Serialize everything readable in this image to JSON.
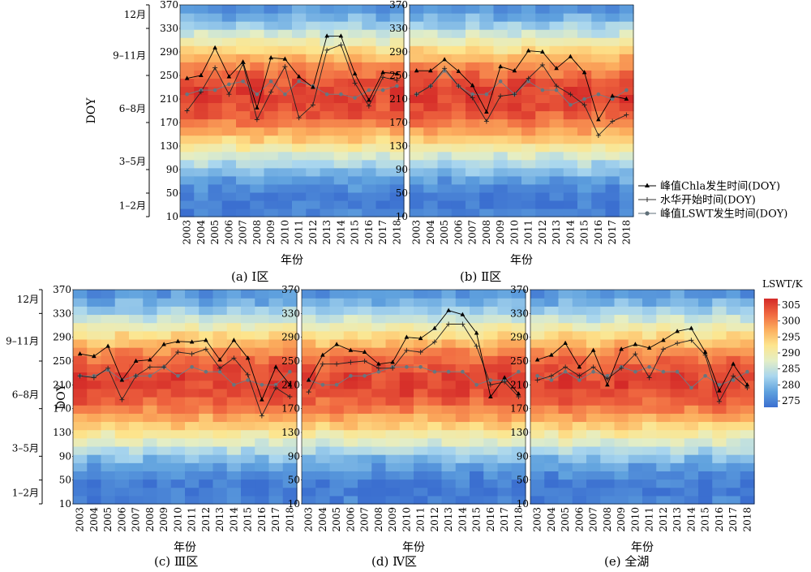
{
  "chart_data": {
    "type": "heatmap",
    "x_label": "年份",
    "y_label": "DOY",
    "years": [
      "2003",
      "2004",
      "2005",
      "2006",
      "2007",
      "2008",
      "2009",
      "2010",
      "2011",
      "2012",
      "2013",
      "2014",
      "2015",
      "2016",
      "2017",
      "2018"
    ],
    "doy_ticks": [
      10,
      50,
      90,
      130,
      170,
      210,
      250,
      290,
      330,
      370
    ],
    "y_range": [
      10,
      370
    ],
    "month_labels": [
      {
        "label": "1–2月",
        "doy": 30
      },
      {
        "label": "3–5月",
        "doy": 105
      },
      {
        "label": "6–8月",
        "doy": 195
      },
      {
        "label": "9–11月",
        "doy": 285
      },
      {
        "label": "12月",
        "doy": 355
      }
    ],
    "colorbar": {
      "title": "LSWT/K",
      "ticks": [
        275,
        280,
        285,
        290,
        295,
        300,
        305
      ],
      "range": [
        273,
        307
      ],
      "colors": [
        "#3b6fd0",
        "#5fa1de",
        "#a9d6ee",
        "#e4eec5",
        "#fde58d",
        "#fcae5e",
        "#f06840",
        "#d42a28"
      ]
    },
    "legend": [
      {
        "label": "峰值Chla发生时间(DOY)",
        "marker": "triangle",
        "color": "#000000"
      },
      {
        "label": "水华开始时间(DOY)",
        "marker": "plus",
        "color": "#333333"
      },
      {
        "label": "峰值LSWT发生时间(DOY)",
        "marker": "circle",
        "color": "#5f6f78"
      }
    ],
    "panels": [
      {
        "caption": "(a) Ⅰ区",
        "peak_chla": [
          245,
          250,
          297,
          248,
          273,
          195,
          280,
          278,
          248,
          230,
          317,
          317,
          253,
          208,
          255,
          253
        ],
        "bloom_start": [
          190,
          222,
          263,
          218,
          270,
          175,
          222,
          265,
          178,
          200,
          293,
          302,
          237,
          198,
          247,
          242
        ],
        "peak_lswt": [
          218,
          225,
          225,
          235,
          240,
          218,
          240,
          218,
          240,
          232,
          218,
          218,
          212,
          225,
          225,
          232
        ]
      },
      {
        "caption": "(b) Ⅱ区",
        "peak_chla": [
          258,
          258,
          277,
          257,
          233,
          188,
          265,
          258,
          292,
          290,
          262,
          282,
          255,
          175,
          215,
          210
        ],
        "bloom_start": [
          218,
          232,
          262,
          232,
          212,
          172,
          215,
          218,
          245,
          268,
          232,
          218,
          200,
          148,
          172,
          183
        ],
        "peak_lswt": [
          218,
          232,
          258,
          232,
          218,
          218,
          240,
          218,
          240,
          225,
          225,
          200,
          210,
          218,
          210,
          225
        ]
      },
      {
        "caption": "(c) Ⅲ区",
        "peak_chla": [
          262,
          258,
          275,
          218,
          250,
          252,
          278,
          283,
          282,
          285,
          252,
          285,
          255,
          185,
          240,
          210
        ],
        "bloom_start": [
          225,
          222,
          238,
          185,
          225,
          240,
          240,
          265,
          262,
          270,
          238,
          255,
          227,
          158,
          205,
          190
        ],
        "peak_lswt": [
          225,
          225,
          235,
          218,
          225,
          225,
          240,
          225,
          240,
          232,
          232,
          210,
          218,
          210,
          210,
          232
        ]
      },
      {
        "caption": "(d) Ⅳ区",
        "peak_chla": [
          218,
          260,
          278,
          268,
          265,
          245,
          248,
          290,
          288,
          305,
          335,
          328,
          297,
          190,
          222,
          195
        ],
        "bloom_start": [
          198,
          245,
          245,
          248,
          250,
          238,
          238,
          268,
          265,
          282,
          312,
          312,
          275,
          210,
          215,
          190
        ],
        "peak_lswt": [
          218,
          210,
          210,
          225,
          225,
          232,
          240,
          240,
          240,
          232,
          232,
          232,
          210,
          218,
          218,
          232
        ]
      },
      {
        "caption": "(e) 全湖",
        "peak_chla": [
          252,
          260,
          280,
          240,
          268,
          210,
          270,
          278,
          272,
          285,
          300,
          305,
          265,
          200,
          245,
          210
        ],
        "bloom_start": [
          218,
          225,
          240,
          225,
          240,
          220,
          238,
          262,
          222,
          270,
          280,
          285,
          260,
          182,
          225,
          205
        ],
        "peak_lswt": [
          225,
          218,
          232,
          218,
          232,
          225,
          240,
          232,
          240,
          232,
          232,
          205,
          225,
          210,
          218,
          232
        ]
      }
    ]
  }
}
